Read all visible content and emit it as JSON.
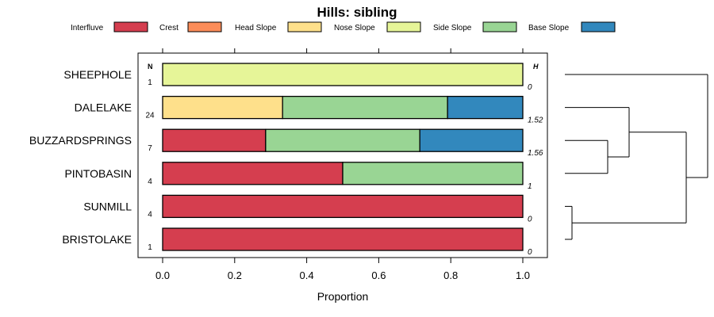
{
  "chart_data": {
    "type": "bar",
    "orientation": "horizontal",
    "stacked": true,
    "title": "Hills: sibling",
    "xlabel": "Proportion",
    "ylabel": "",
    "xlim": [
      0,
      1
    ],
    "xticks": [
      0.0,
      0.2,
      0.4,
      0.6,
      0.8,
      1.0
    ],
    "xtick_labels": [
      "0.0",
      "0.2",
      "0.4",
      "0.6",
      "0.8",
      "1.0"
    ],
    "n_header": "N",
    "h_header": "H",
    "legend": [
      {
        "name": "Interfluve",
        "color": "#D53E4F"
      },
      {
        "name": "Crest",
        "color": "#FC8D59"
      },
      {
        "name": "Head Slope",
        "color": "#FEE08B"
      },
      {
        "name": "Nose Slope",
        "color": "#E6F598"
      },
      {
        "name": "Side Slope",
        "color": "#99D594"
      },
      {
        "name": "Base Slope",
        "color": "#3288BD"
      }
    ],
    "categories": [
      "SHEEPHOLE",
      "DALELAKE",
      "BUZZARDSPRINGS",
      "PINTOBASIN",
      "SUNMILL",
      "BRISTOLAKE"
    ],
    "n": [
      "1",
      "24",
      "7",
      "4",
      "4",
      "1"
    ],
    "h": [
      "0",
      "1.52",
      "1.56",
      "1",
      "0",
      "0"
    ],
    "series": [
      {
        "name": "Interfluve",
        "values": [
          0,
          0,
          0.286,
          0.5,
          1.0,
          1.0
        ]
      },
      {
        "name": "Crest",
        "values": [
          0,
          0,
          0,
          0,
          0,
          0
        ]
      },
      {
        "name": "Head Slope",
        "values": [
          0,
          0.333,
          0,
          0,
          0,
          0
        ]
      },
      {
        "name": "Nose Slope",
        "values": [
          1.0,
          0,
          0,
          0,
          0,
          0
        ]
      },
      {
        "name": "Side Slope",
        "values": [
          0,
          0.458,
          0.428,
          0.5,
          0,
          0
        ]
      },
      {
        "name": "Base Slope",
        "values": [
          0,
          0.209,
          0.286,
          0,
          0,
          0
        ]
      }
    ],
    "dendrogram": {
      "leaf_order": [
        "SHEEPHOLE",
        "DALELAKE",
        "BUZZARDSPRINGS",
        "PINTOBASIN",
        "SUNMILL",
        "BRISTOLAKE"
      ],
      "merges": [
        {
          "left": "SUNMILL",
          "right": "BRISTOLAKE",
          "height": 0.05
        },
        {
          "left": "BUZZARDSPRINGS",
          "right": "PINTOBASIN",
          "height": 0.3
        },
        {
          "left": "DALELAKE",
          "cluster": "BUZZARDSPRINGS+PINTOBASIN",
          "height": 0.45
        },
        {
          "left": "DALELAKE+BUZZARDSPRINGS+PINTOBASIN",
          "cluster": "SUNMILL+BRISTOLAKE",
          "height": 0.85
        },
        {
          "left": "SHEEPHOLE",
          "cluster": "rest",
          "height": 1.0
        }
      ]
    }
  }
}
